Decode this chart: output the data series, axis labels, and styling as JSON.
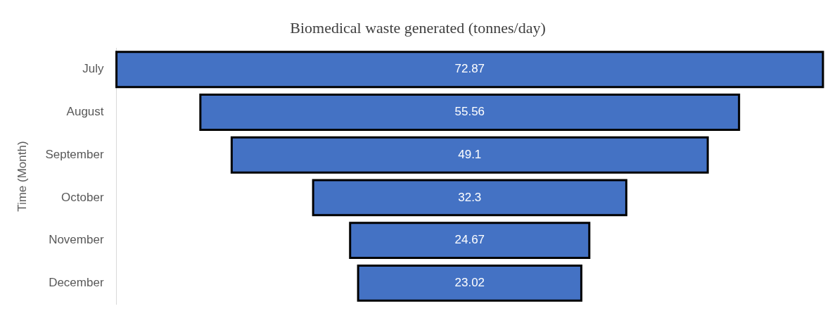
{
  "chart_data": {
    "type": "other",
    "title": "Biomedical waste generated (tonnes/day)",
    "ylabel": "Time (Month)",
    "categories": [
      "July",
      "August",
      "September",
      "October",
      "November",
      "December"
    ],
    "values": [
      72.87,
      55.56,
      49.1,
      32.3,
      24.67,
      23.02
    ],
    "color": "#4472c4",
    "data_labels": true
  }
}
